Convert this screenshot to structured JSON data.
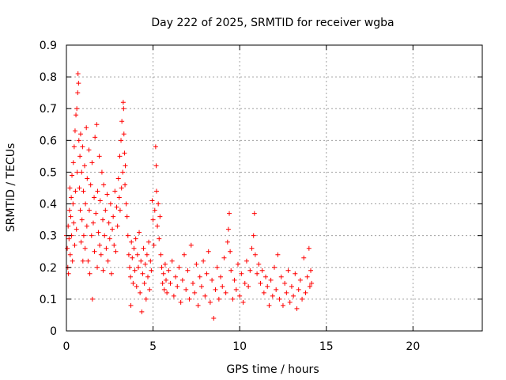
{
  "chart_data": {
    "type": "scatter",
    "title": "Day 222 of 2025, SRMTID for receiver wgba",
    "xlabel": "GPS time / hours",
    "ylabel": "SRMTID / TECUs",
    "xlim": [
      0,
      24
    ],
    "ylim": [
      0,
      0.9
    ],
    "x_ticks": [
      0,
      5,
      10,
      15,
      20
    ],
    "y_ticks": [
      0,
      0.1,
      0.2,
      0.3,
      0.4,
      0.5,
      0.6,
      0.7,
      0.8,
      0.9
    ],
    "x_tick_labels": [
      "0",
      "5",
      "10",
      "15",
      "20"
    ],
    "y_tick_labels": [
      "0",
      "0.1",
      "0.2",
      "0.3",
      "0.4",
      "0.5",
      "0.6",
      "0.7",
      "0.8",
      "0.9"
    ],
    "grid": true,
    "marker": "+",
    "series": [
      {
        "name": "SRMTID",
        "color": "#ff0000",
        "points": [
          [
            0.0,
            0.3
          ],
          [
            0.05,
            0.26
          ],
          [
            0.08,
            0.2
          ],
          [
            0.1,
            0.33
          ],
          [
            0.12,
            0.18
          ],
          [
            0.15,
            0.29
          ],
          [
            0.18,
            0.38
          ],
          [
            0.2,
            0.45
          ],
          [
            0.22,
            0.24
          ],
          [
            0.25,
            0.36
          ],
          [
            0.28,
            0.42
          ],
          [
            0.3,
            0.3
          ],
          [
            0.32,
            0.49
          ],
          [
            0.35,
            0.22
          ],
          [
            0.38,
            0.4
          ],
          [
            0.4,
            0.53
          ],
          [
            0.42,
            0.34
          ],
          [
            0.45,
            0.58
          ],
          [
            0.48,
            0.27
          ],
          [
            0.5,
            0.63
          ],
          [
            0.52,
            0.44
          ],
          [
            0.55,
            0.68
          ],
          [
            0.58,
            0.32
          ],
          [
            0.6,
            0.7
          ],
          [
            0.62,
            0.5
          ],
          [
            0.65,
            0.75
          ],
          [
            0.67,
            0.81
          ],
          [
            0.7,
            0.78
          ],
          [
            0.72,
            0.6
          ],
          [
            0.75,
            0.45
          ],
          [
            0.78,
            0.55
          ],
          [
            0.8,
            0.38
          ],
          [
            0.82,
            0.62
          ],
          [
            0.85,
            0.28
          ],
          [
            0.88,
            0.5
          ],
          [
            0.9,
            0.35
          ],
          [
            0.93,
            0.58
          ],
          [
            0.95,
            0.22
          ],
          [
            0.98,
            0.44
          ],
          [
            1.0,
            0.3
          ],
          [
            1.05,
            0.52
          ],
          [
            1.08,
            0.26
          ],
          [
            1.1,
            0.4
          ],
          [
            1.15,
            0.64
          ],
          [
            1.18,
            0.33
          ],
          [
            1.2,
            0.48
          ],
          [
            1.25,
            0.22
          ],
          [
            1.3,
            0.57
          ],
          [
            1.32,
            0.38
          ],
          [
            1.35,
            0.18
          ],
          [
            1.4,
            0.46
          ],
          [
            1.45,
            0.3
          ],
          [
            1.48,
            0.53
          ],
          [
            1.5,
            0.1
          ],
          [
            1.55,
            0.34
          ],
          [
            1.6,
            0.42
          ],
          [
            1.62,
            0.25
          ],
          [
            1.65,
            0.61
          ],
          [
            1.7,
            0.37
          ],
          [
            1.75,
            0.65
          ],
          [
            1.78,
            0.2
          ],
          [
            1.8,
            0.44
          ],
          [
            1.85,
            0.31
          ],
          [
            1.9,
            0.55
          ],
          [
            1.92,
            0.27
          ],
          [
            1.95,
            0.41
          ],
          [
            2.0,
            0.24
          ],
          [
            2.05,
            0.5
          ],
          [
            2.1,
            0.35
          ],
          [
            2.12,
            0.19
          ],
          [
            2.15,
            0.46
          ],
          [
            2.2,
            0.3
          ],
          [
            2.25,
            0.38
          ],
          [
            2.3,
            0.26
          ],
          [
            2.35,
            0.43
          ],
          [
            2.4,
            0.22
          ],
          [
            2.45,
            0.34
          ],
          [
            2.5,
            0.29
          ],
          [
            2.55,
            0.4
          ],
          [
            2.6,
            0.18
          ],
          [
            2.65,
            0.32
          ],
          [
            2.7,
            0.36
          ],
          [
            2.75,
            0.27
          ],
          [
            2.8,
            0.44
          ],
          [
            2.85,
            0.25
          ],
          [
            2.9,
            0.39
          ],
          [
            2.95,
            0.33
          ],
          [
            3.0,
            0.48
          ],
          [
            3.05,
            0.42
          ],
          [
            3.08,
            0.55
          ],
          [
            3.1,
            0.38
          ],
          [
            3.15,
            0.6
          ],
          [
            3.18,
            0.45
          ],
          [
            3.2,
            0.66
          ],
          [
            3.25,
            0.5
          ],
          [
            3.28,
            0.72
          ],
          [
            3.3,
            0.7
          ],
          [
            3.32,
            0.62
          ],
          [
            3.35,
            0.56
          ],
          [
            3.38,
            0.46
          ],
          [
            3.4,
            0.52
          ],
          [
            3.45,
            0.4
          ],
          [
            3.5,
            0.36
          ],
          [
            3.55,
            0.3
          ],
          [
            3.6,
            0.24
          ],
          [
            3.65,
            0.2
          ],
          [
            3.7,
            0.17
          ],
          [
            3.72,
            0.08
          ],
          [
            3.75,
            0.28
          ],
          [
            3.8,
            0.23
          ],
          [
            3.85,
            0.15
          ],
          [
            3.9,
            0.26
          ],
          [
            3.95,
            0.19
          ],
          [
            4.0,
            0.29
          ],
          [
            4.05,
            0.14
          ],
          [
            4.1,
            0.24
          ],
          [
            4.15,
            0.2
          ],
          [
            4.2,
            0.31
          ],
          [
            4.25,
            0.12
          ],
          [
            4.3,
            0.22
          ],
          [
            4.35,
            0.06
          ],
          [
            4.4,
            0.18
          ],
          [
            4.45,
            0.26
          ],
          [
            4.5,
            0.15
          ],
          [
            4.55,
            0.21
          ],
          [
            4.6,
            0.1
          ],
          [
            4.65,
            0.24
          ],
          [
            4.7,
            0.17
          ],
          [
            4.75,
            0.28
          ],
          [
            4.8,
            0.13
          ],
          [
            4.85,
            0.22
          ],
          [
            4.9,
            0.19
          ],
          [
            4.95,
            0.41
          ],
          [
            5.0,
            0.35
          ],
          [
            5.05,
            0.27
          ],
          [
            5.1,
            0.38
          ],
          [
            5.15,
            0.58
          ],
          [
            5.18,
            0.52
          ],
          [
            5.2,
            0.44
          ],
          [
            5.25,
            0.33
          ],
          [
            5.3,
            0.4
          ],
          [
            5.35,
            0.29
          ],
          [
            5.4,
            0.36
          ],
          [
            5.45,
            0.24
          ],
          [
            5.5,
            0.2
          ],
          [
            5.55,
            0.15
          ],
          [
            5.6,
            0.18
          ],
          [
            5.65,
            0.13
          ],
          [
            5.7,
            0.21
          ],
          [
            5.75,
            0.16
          ],
          [
            5.8,
            0.12
          ],
          [
            5.9,
            0.19
          ],
          [
            6.0,
            0.15
          ],
          [
            6.1,
            0.22
          ],
          [
            6.2,
            0.11
          ],
          [
            6.3,
            0.17
          ],
          [
            6.4,
            0.14
          ],
          [
            6.5,
            0.2
          ],
          [
            6.6,
            0.09
          ],
          [
            6.7,
            0.16
          ],
          [
            6.8,
            0.24
          ],
          [
            6.9,
            0.13
          ],
          [
            7.0,
            0.19
          ],
          [
            7.1,
            0.1
          ],
          [
            7.2,
            0.27
          ],
          [
            7.3,
            0.15
          ],
          [
            7.4,
            0.12
          ],
          [
            7.5,
            0.21
          ],
          [
            7.6,
            0.08
          ],
          [
            7.7,
            0.17
          ],
          [
            7.8,
            0.14
          ],
          [
            7.9,
            0.22
          ],
          [
            8.0,
            0.11
          ],
          [
            8.1,
            0.18
          ],
          [
            8.2,
            0.25
          ],
          [
            8.3,
            0.09
          ],
          [
            8.4,
            0.16
          ],
          [
            8.5,
            0.04
          ],
          [
            8.6,
            0.13
          ],
          [
            8.7,
            0.2
          ],
          [
            8.8,
            0.1
          ],
          [
            8.9,
            0.17
          ],
          [
            9.0,
            0.14
          ],
          [
            9.1,
            0.23
          ],
          [
            9.2,
            0.12
          ],
          [
            9.3,
            0.28
          ],
          [
            9.35,
            0.32
          ],
          [
            9.4,
            0.37
          ],
          [
            9.45,
            0.25
          ],
          [
            9.5,
            0.19
          ],
          [
            9.6,
            0.1
          ],
          [
            9.7,
            0.16
          ],
          [
            9.8,
            0.13
          ],
          [
            9.9,
            0.21
          ],
          [
            10.0,
            0.11
          ],
          [
            10.1,
            0.18
          ],
          [
            10.2,
            0.09
          ],
          [
            10.3,
            0.15
          ],
          [
            10.4,
            0.22
          ],
          [
            10.5,
            0.14
          ],
          [
            10.6,
            0.19
          ],
          [
            10.7,
            0.26
          ],
          [
            10.8,
            0.3
          ],
          [
            10.85,
            0.37
          ],
          [
            10.9,
            0.24
          ],
          [
            11.0,
            0.18
          ],
          [
            11.1,
            0.21
          ],
          [
            11.2,
            0.15
          ],
          [
            11.3,
            0.19
          ],
          [
            11.4,
            0.12
          ],
          [
            11.5,
            0.17
          ],
          [
            11.6,
            0.14
          ],
          [
            11.7,
            0.08
          ],
          [
            11.8,
            0.16
          ],
          [
            11.9,
            0.11
          ],
          [
            12.0,
            0.2
          ],
          [
            12.1,
            0.13
          ],
          [
            12.2,
            0.24
          ],
          [
            12.3,
            0.1
          ],
          [
            12.4,
            0.17
          ],
          [
            12.5,
            0.08
          ],
          [
            12.6,
            0.15
          ],
          [
            12.7,
            0.12
          ],
          [
            12.8,
            0.19
          ],
          [
            12.9,
            0.09
          ],
          [
            13.0,
            0.14
          ],
          [
            13.1,
            0.11
          ],
          [
            13.2,
            0.18
          ],
          [
            13.3,
            0.07
          ],
          [
            13.4,
            0.13
          ],
          [
            13.5,
            0.16
          ],
          [
            13.6,
            0.1
          ],
          [
            13.7,
            0.23
          ],
          [
            13.8,
            0.12
          ],
          [
            13.9,
            0.17
          ],
          [
            14.0,
            0.26
          ],
          [
            14.05,
            0.14
          ],
          [
            14.1,
            0.19
          ],
          [
            14.15,
            0.15
          ]
        ]
      }
    ]
  }
}
